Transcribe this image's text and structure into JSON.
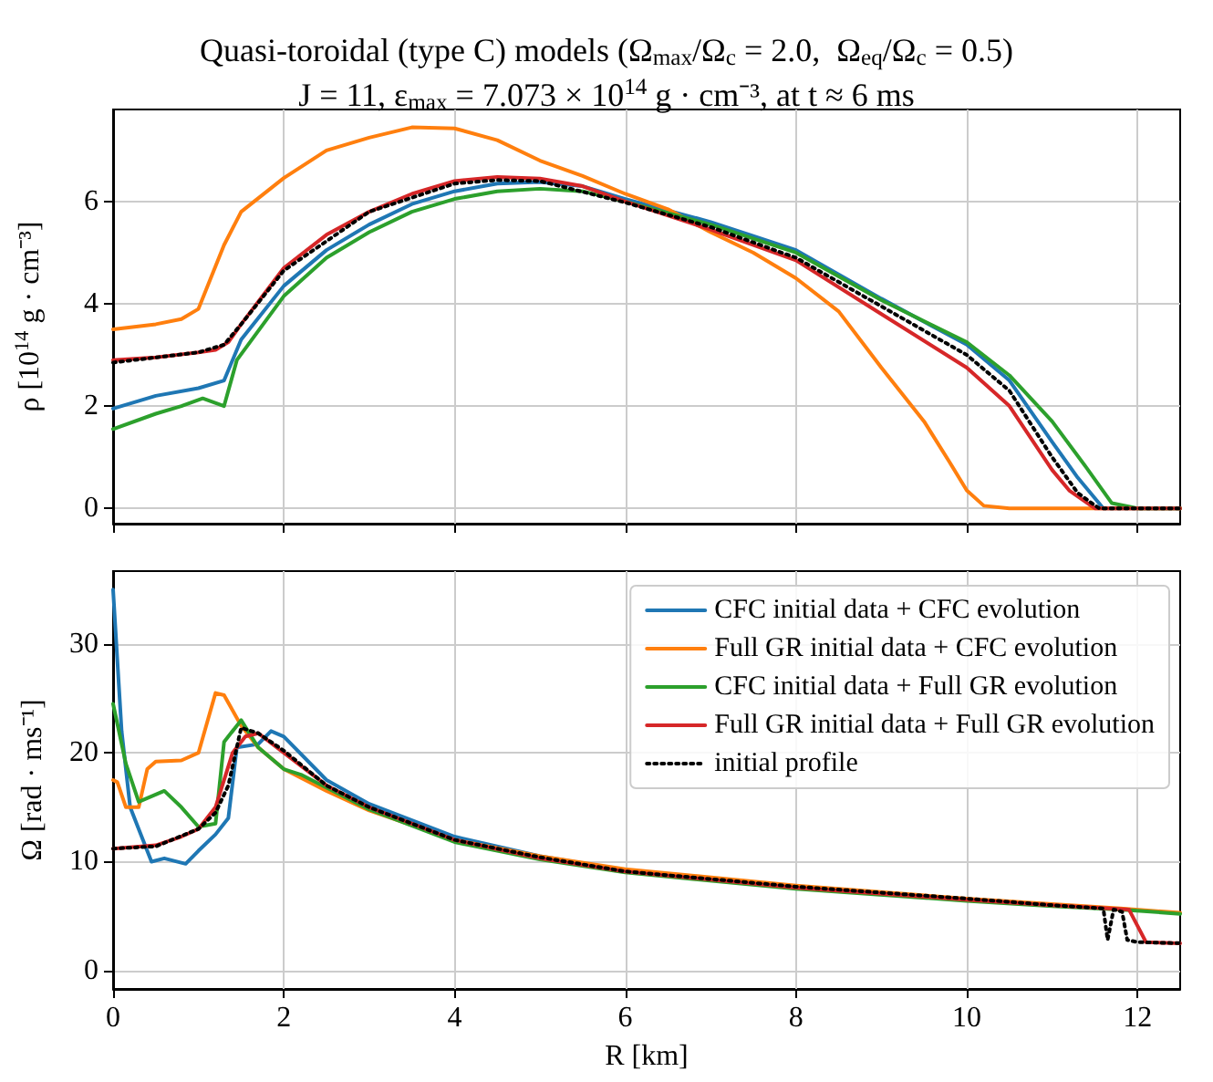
{
  "chart_data": [
    {
      "type": "line",
      "title": "Quasi-toroidal (type C) models (Ω$_{max}$/Ω$_{c}$ = 2.0,  Ω$_{eq}$/Ω$_{c}$ = 0.5)",
      "subtitle": "J = 11, ε$_{max}$ = 7.073 × 10$^{14}$ g · cm⁻³, at t ≈ 6 ms",
      "ylabel": "ρ [10$^{14}$ g · cm⁻³]",
      "xlim": [
        0,
        12.5
      ],
      "xticks": [
        0,
        2,
        4,
        6,
        8,
        10,
        12
      ],
      "ylim": [
        -0.3,
        7.8
      ],
      "yticks": [
        0,
        2,
        4,
        6
      ],
      "tick_labels": "y",
      "grid": true,
      "legend": false,
      "marker": "none",
      "series": [
        {
          "color": "#1f77b4",
          "x": [
            0,
            0.5,
            1,
            1.3,
            1.5,
            2,
            2.5,
            3,
            3.5,
            4,
            4.5,
            5,
            5.5,
            6,
            7,
            8,
            9,
            10,
            10.5,
            11,
            11.3,
            11.6,
            12,
            12.5
          ],
          "values": [
            1.95,
            2.2,
            2.35,
            2.5,
            3.3,
            4.35,
            5.05,
            5.55,
            5.95,
            6.2,
            6.35,
            6.38,
            6.3,
            6.05,
            5.6,
            5.05,
            4.1,
            3.2,
            2.5,
            1.3,
            0.6,
            0,
            0,
            0
          ]
        },
        {
          "color": "#ff7f0e",
          "x": [
            0,
            0.5,
            0.8,
            1,
            1.3,
            1.5,
            2,
            2.5,
            3,
            3.5,
            4,
            4.5,
            5,
            5.5,
            6,
            6.5,
            7,
            7.5,
            8,
            8.5,
            9,
            9.5,
            9.8,
            10,
            10.2,
            10.5,
            12.5
          ],
          "values": [
            3.5,
            3.6,
            3.7,
            3.9,
            5.15,
            5.8,
            6.46,
            7.0,
            7.25,
            7.45,
            7.43,
            7.2,
            6.8,
            6.5,
            6.15,
            5.85,
            5.4,
            5.0,
            4.5,
            3.85,
            2.75,
            1.7,
            0.9,
            0.35,
            0.05,
            0,
            0
          ]
        },
        {
          "color": "#2ca02c",
          "x": [
            0,
            0.5,
            0.8,
            1.05,
            1.3,
            1.45,
            2,
            2.5,
            3,
            3.5,
            4,
            4.5,
            5,
            5.5,
            6,
            7,
            8,
            9,
            10,
            10.5,
            11,
            11.4,
            11.7,
            12,
            12.5
          ],
          "values": [
            1.55,
            1.85,
            2.0,
            2.15,
            2.0,
            2.9,
            4.15,
            4.9,
            5.4,
            5.8,
            6.05,
            6.2,
            6.25,
            6.2,
            6.0,
            5.55,
            5.0,
            4.07,
            3.25,
            2.6,
            1.7,
            0.8,
            0.1,
            0,
            0
          ]
        },
        {
          "color": "#d62728",
          "x": [
            0,
            0.5,
            1,
            1.2,
            1.35,
            1.5,
            2,
            2.5,
            3,
            3.5,
            4,
            4.5,
            5,
            5.5,
            6,
            7,
            8,
            9,
            10,
            10.5,
            11,
            11.2,
            11.5,
            12.5
          ],
          "values": [
            2.9,
            2.95,
            3.05,
            3.1,
            3.25,
            3.6,
            4.7,
            5.35,
            5.8,
            6.15,
            6.4,
            6.48,
            6.45,
            6.3,
            6.0,
            5.45,
            4.85,
            3.8,
            2.75,
            2.0,
            0.75,
            0.35,
            0,
            0
          ]
        },
        {
          "color": "#000000",
          "line_style": "dotted",
          "x": [
            0,
            1,
            1.3,
            1.5,
            2,
            3,
            4,
            4.5,
            5,
            6,
            7,
            8,
            9,
            10,
            10.5,
            11,
            11.3,
            11.55,
            12.5
          ],
          "values": [
            2.85,
            3.05,
            3.2,
            3.6,
            4.65,
            5.8,
            6.35,
            6.42,
            6.4,
            5.98,
            5.5,
            4.9,
            3.95,
            3.0,
            2.3,
            1.0,
            0.3,
            0,
            0
          ]
        }
      ]
    },
    {
      "type": "line",
      "xlabel": "R [km]",
      "ylabel": "Ω [rad · ms⁻¹]",
      "xlim": [
        0,
        12.5
      ],
      "xticks": [
        0,
        2,
        4,
        6,
        8,
        10,
        12
      ],
      "ylim": [
        -1.7,
        36.7
      ],
      "yticks": [
        0,
        10,
        20,
        30
      ],
      "grid": true,
      "legend": "top right",
      "marker": "none",
      "series": [
        {
          "name": "CFC initial data + CFC evolution",
          "color": "#1f77b4",
          "x": [
            0,
            0.1,
            0.2,
            0.3,
            0.45,
            0.6,
            0.85,
            1.0,
            1.2,
            1.35,
            1.45,
            1.7,
            1.85,
            2,
            2.5,
            3,
            4,
            5,
            6
          ],
          "values": [
            35,
            22,
            15,
            13,
            10,
            10.3,
            9.8,
            11,
            12.5,
            14,
            20.5,
            20.8,
            22,
            21.5,
            17.5,
            15.3,
            12.3,
            10.5,
            9.2
          ]
        },
        {
          "name": "Full GR initial data + CFC evolution",
          "color": "#ff7f0e",
          "x": [
            0,
            0.05,
            0.15,
            0.3,
            0.4,
            0.5,
            0.8,
            1,
            1.2,
            1.3,
            1.5,
            1.7,
            2,
            2.5,
            3,
            4,
            5,
            6,
            8,
            10,
            11,
            11.8,
            12.5
          ],
          "values": [
            17.5,
            17.3,
            15,
            15,
            18.5,
            19.2,
            19.3,
            20,
            25.5,
            25.3,
            22.5,
            20.5,
            18.5,
            16.5,
            14.7,
            12,
            10.5,
            9.3,
            7.8,
            6.6,
            6.1,
            5.7,
            5.3
          ]
        },
        {
          "name": "CFC initial data + Full GR evolution",
          "color": "#2ca02c",
          "x": [
            0,
            0.15,
            0.3,
            0.6,
            0.8,
            1.0,
            1.2,
            1.3,
            1.5,
            1.7,
            2,
            2.2,
            3,
            4,
            5,
            6,
            8,
            10,
            11,
            11.8,
            12.5
          ],
          "values": [
            24.5,
            19,
            15.5,
            16.5,
            15,
            13.2,
            13.5,
            21,
            23,
            20.5,
            18.5,
            18,
            14.8,
            11.8,
            10.2,
            9,
            7.5,
            6.4,
            5.9,
            5.6,
            5.2
          ]
        },
        {
          "name": "Full GR initial data + Full GR evolution",
          "color": "#d62728",
          "x": [
            0,
            0.5,
            0.8,
            1.0,
            1.2,
            1.4,
            1.55,
            1.7,
            2,
            2.5,
            3,
            4,
            5,
            6,
            8,
            10,
            11,
            11.9,
            12.1,
            12.5
          ],
          "values": [
            11.2,
            11.5,
            12.3,
            13,
            15,
            20,
            21.5,
            21.8,
            20,
            17,
            15,
            12,
            10.3,
            9.1,
            7.6,
            6.5,
            6,
            5.6,
            2.6,
            2.5
          ]
        },
        {
          "name": "initial profile",
          "color": "#000000",
          "line_style": "dotted",
          "x": [
            0,
            0.5,
            1,
            1.2,
            1.35,
            1.5,
            1.7,
            2,
            2.5,
            3,
            4,
            5,
            6,
            8,
            10,
            11,
            11.6,
            11.65,
            11.72,
            11.82,
            11.88,
            12,
            12.5
          ],
          "values": [
            11.2,
            11.4,
            13,
            14.5,
            17,
            22.3,
            21.8,
            20.2,
            17,
            15,
            12,
            10.4,
            9.1,
            7.7,
            6.6,
            6.0,
            5.7,
            2.8,
            5.6,
            5.4,
            2.8,
            2.6,
            2.5
          ]
        }
      ]
    }
  ]
}
